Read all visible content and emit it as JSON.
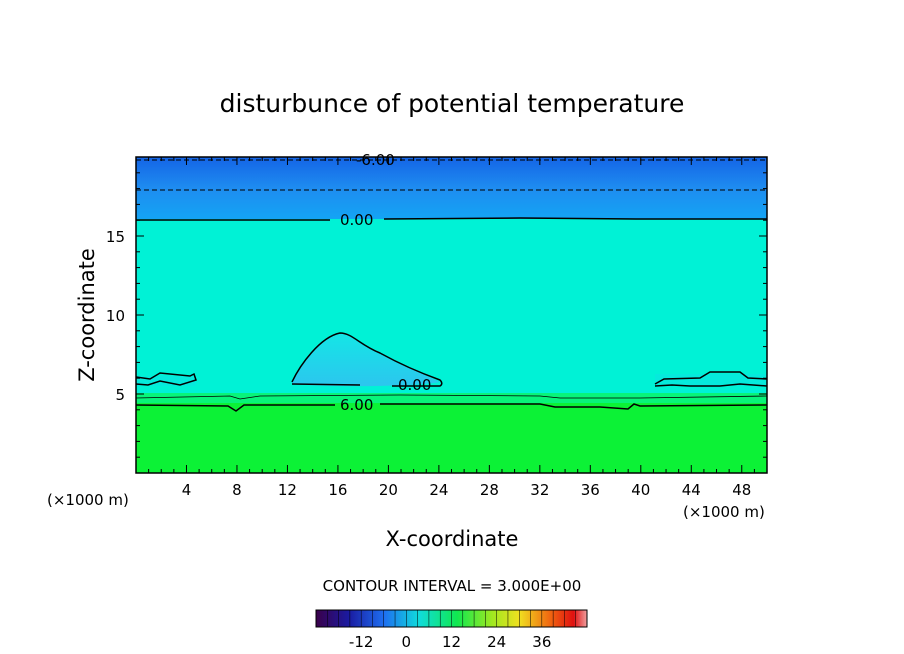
{
  "chart_data": {
    "type": "heatmap",
    "title": "disturbunce of potential temperature",
    "xlabel": "X-coordinate",
    "ylabel": "Z-coordinate",
    "x_unit": "(×1000 m)",
    "z_unit": "(×1000 m)",
    "xlim": [
      0,
      50
    ],
    "ylim": [
      0,
      20
    ],
    "x_ticks": [
      "4",
      "8",
      "12",
      "16",
      "20",
      "24",
      "28",
      "32",
      "36",
      "40",
      "44",
      "48"
    ],
    "y_ticks": [
      "5",
      "10",
      "15"
    ],
    "contour_labels": [
      "-6.00",
      "0.00",
      "0.00",
      "6.00"
    ],
    "contour_interval": "CONTOUR INTERVAL = 3.000E+00",
    "colorbar": {
      "range": [
        -24,
        48
      ],
      "tick_labels": [
        "-12",
        "0",
        "12",
        "24",
        "36"
      ]
    },
    "colors": {
      "upper_blue": "#1e8cf0",
      "top_blue": "#1464e6",
      "mid_cyan": "#00f5d6",
      "lower_green": "#0af52e",
      "bubble_cyan": "#28d2f0"
    }
  }
}
